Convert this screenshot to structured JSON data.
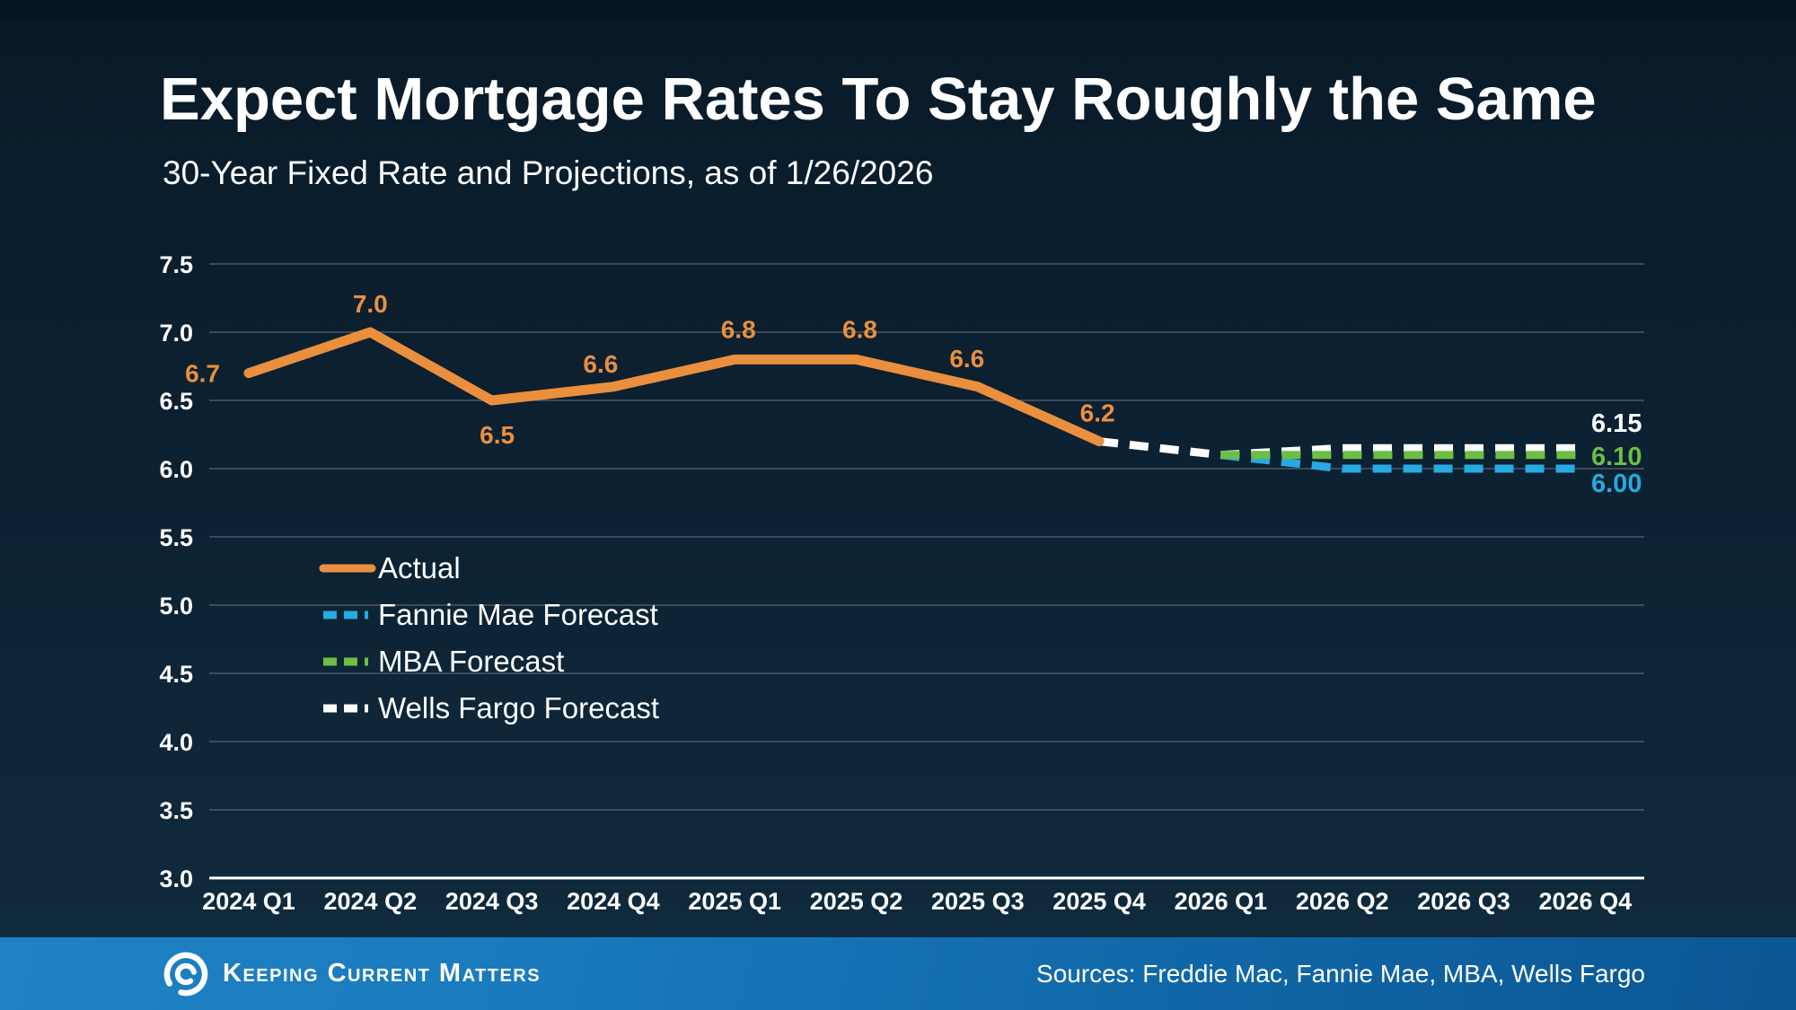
{
  "colors": {
    "orange": "#EA8F3E",
    "blue": "#27A9E1",
    "green": "#6CBE45",
    "white": "#FFFFFF",
    "gridline": "#4b5865",
    "footer_blue": "#1674B5"
  },
  "chart_data": {
    "type": "line",
    "title": "Expect Mortgage Rates To Stay Roughly the Same",
    "subtitle": "30-Year Fixed Rate and Projections, as of 1/26/2026",
    "categories": [
      "2024 Q1",
      "2024 Q2",
      "2024 Q3",
      "2024 Q4",
      "2025 Q1",
      "2025 Q2",
      "2025 Q3",
      "2025 Q4",
      "2026 Q1",
      "2026 Q2",
      "2026 Q3",
      "2026 Q4"
    ],
    "y_ticks": [
      "7.5",
      "7.0",
      "6.5",
      "6.0",
      "5.5",
      "5.0",
      "4.5",
      "4.0",
      "3.5",
      "3.0"
    ],
    "ylim": [
      3.0,
      7.5
    ],
    "grid": true,
    "legend_position": "inside-left",
    "series": [
      {
        "name": "Actual",
        "color": "#EA8F3E",
        "style": "solid",
        "values": [
          6.7,
          7.0,
          6.5,
          6.6,
          6.8,
          6.8,
          6.6,
          6.2,
          null,
          null,
          null,
          null
        ],
        "point_labels": [
          "6.7",
          "7.0",
          "6.5",
          "6.6",
          "6.8",
          "6.8",
          "6.6",
          "6.2"
        ]
      },
      {
        "name": "Fannie Mae Forecast",
        "color": "#27A9E1",
        "style": "dashed",
        "values": [
          null,
          null,
          null,
          null,
          null,
          null,
          null,
          null,
          6.1,
          6.0,
          6.0,
          6.0
        ],
        "end_label": "6.00"
      },
      {
        "name": "MBA Forecast",
        "color": "#6CBE45",
        "style": "dashed",
        "values": [
          null,
          null,
          null,
          null,
          null,
          null,
          null,
          null,
          6.1,
          6.1,
          6.1,
          6.1
        ],
        "end_label": "6.10"
      },
      {
        "name": "Wells Fargo Forecast",
        "color": "#FFFFFF",
        "style": "dashed",
        "values": [
          null,
          null,
          null,
          null,
          null,
          null,
          null,
          6.2,
          6.1,
          6.15,
          6.15,
          6.15
        ],
        "end_label": "6.15"
      }
    ]
  },
  "footer": {
    "brand": "Keeping Current Matters",
    "sources": "Sources: Freddie Mac, Fannie Mae, MBA, Wells Fargo"
  }
}
